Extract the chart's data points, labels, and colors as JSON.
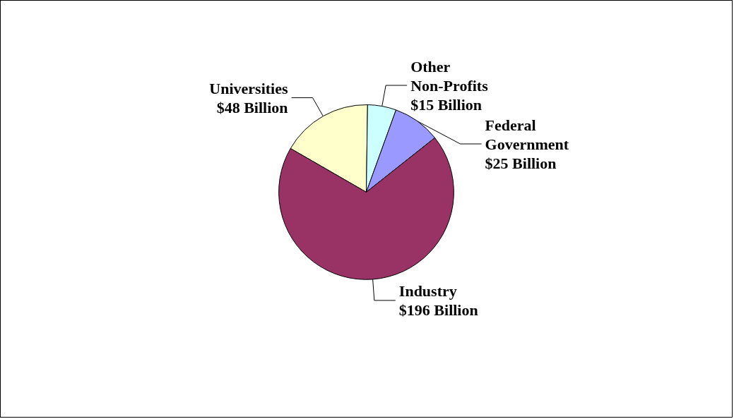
{
  "chart_data": {
    "type": "pie",
    "categories": [
      "Universities",
      "Other Non-Profits",
      "Federal Government",
      "Industry"
    ],
    "values": [
      48,
      15,
      25,
      196
    ],
    "value_labels": [
      "$48 Billion",
      "$15 Billion",
      "$25 Billion",
      "$196 Billion"
    ],
    "colors": [
      "#ffffcc",
      "#ccffff",
      "#9999ff",
      "#993366"
    ],
    "legend": false
  }
}
